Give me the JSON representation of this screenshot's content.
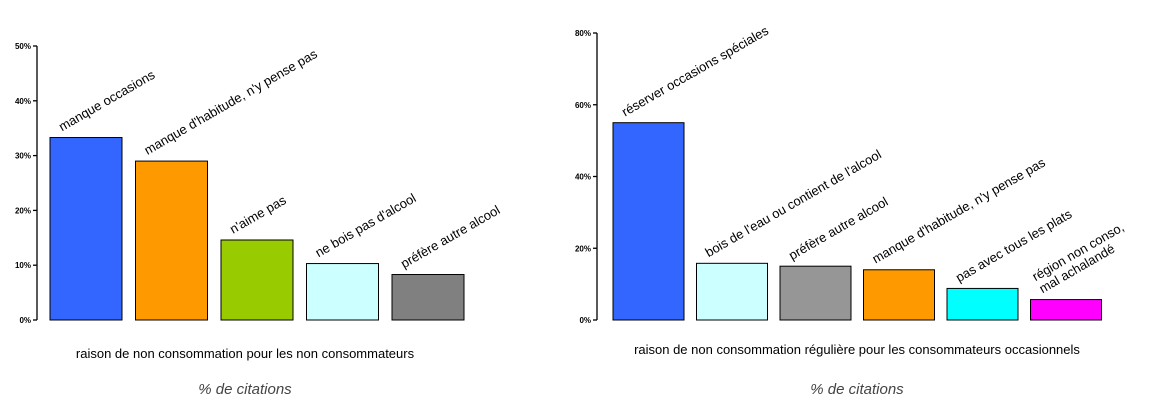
{
  "chart_data": [
    {
      "type": "bar",
      "title": "",
      "xlabel": "raison de non consommation pour les non consommateurs",
      "footer": "% de citations",
      "ylim": [
        0,
        50
      ],
      "yticks": [
        "0%",
        "10%",
        "20%",
        "30%",
        "40%",
        "50%"
      ],
      "categories": [
        [
          "manque occasions"
        ],
        [
          "manque d'habitude, n'y pense pas"
        ],
        [
          "n'aime pas"
        ],
        [
          "ne bois pas d'alcool"
        ],
        [
          "préfère autre alcool"
        ]
      ],
      "values": [
        33.3,
        29.0,
        14.6,
        10.3,
        8.3
      ],
      "colors": [
        "#3366ff",
        "#ff9900",
        "#99cc00",
        "#ccffff",
        "#808080"
      ]
    },
    {
      "type": "bar",
      "title": "",
      "xlabel": "raison de non consommation régulière pour les consommateurs occasionnels",
      "footer": "% de citations",
      "ylim": [
        0,
        80
      ],
      "yticks": [
        "0%",
        "20%",
        "40%",
        "60%",
        "80%"
      ],
      "categories": [
        [
          "réserver occasions spéciales"
        ],
        [
          "bois de l'eau ou contient de l'alcool"
        ],
        [
          "préfère autre alcool"
        ],
        [
          "manque d'habitude, n'y pense pas"
        ],
        [
          "pas avec tous les plats"
        ],
        [
          "région non conso,",
          "mal achalandé"
        ]
      ],
      "values": [
        55.0,
        15.8,
        15.0,
        14.0,
        8.8,
        5.7
      ],
      "colors": [
        "#3366ff",
        "#ccffff",
        "#969696",
        "#ff9900",
        "#00ffff",
        "#ff00ff"
      ]
    }
  ]
}
